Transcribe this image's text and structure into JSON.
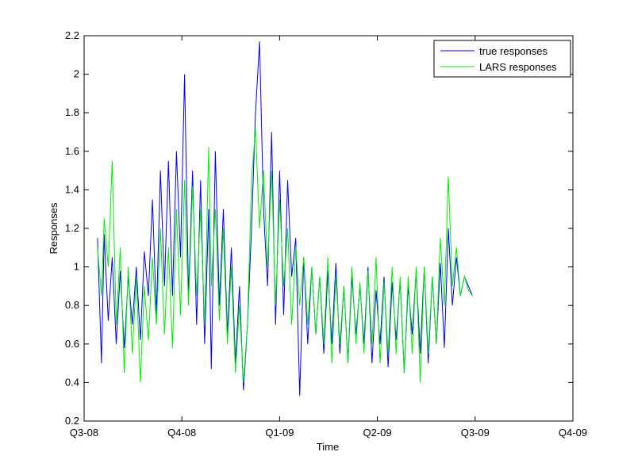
{
  "chart_data": {
    "type": "line",
    "xlabel": "Time",
    "ylabel": "Responses",
    "x_ticks": [
      "Q3-08",
      "Q4-08",
      "Q1-09",
      "Q2-09",
      "Q3-09",
      "Q4-09"
    ],
    "x_range": [
      0,
      365
    ],
    "ylim": [
      0.2,
      2.2
    ],
    "y_ticks": [
      "0.2",
      "0.4",
      "0.6",
      "0.8",
      "1",
      "1.2",
      "1.4",
      "1.6",
      "1.8",
      "2",
      "2.2"
    ],
    "grid": false,
    "legend": "top-right",
    "series": [
      {
        "name": "true responses",
        "color": "#0000ff",
        "x": [
          10,
          13,
          15,
          18,
          21,
          24,
          27,
          30,
          33,
          36,
          39,
          42,
          45,
          48,
          51,
          54,
          57,
          60,
          63,
          66,
          69,
          72,
          75,
          78,
          81,
          84,
          87,
          90,
          93,
          95,
          98,
          101,
          104,
          107,
          110,
          113,
          116,
          119,
          122,
          125,
          128,
          131,
          134,
          137,
          140,
          143,
          146,
          149,
          152,
          155,
          158,
          161,
          164,
          167,
          170,
          173,
          176,
          179,
          182,
          185,
          188,
          191,
          194,
          197,
          200,
          203,
          206,
          209,
          212,
          215,
          218,
          221,
          224,
          227,
          230,
          233,
          236,
          239,
          242,
          245,
          248,
          251,
          254,
          257,
          260,
          263,
          266,
          269,
          272,
          275,
          278,
          281,
          284,
          287,
          290
        ],
        "y": [
          1.15,
          0.5,
          1.17,
          0.72,
          1.05,
          0.6,
          0.98,
          0.58,
          0.95,
          0.7,
          1.0,
          0.62,
          1.08,
          0.85,
          1.35,
          0.75,
          1.5,
          0.9,
          1.55,
          0.85,
          1.6,
          1.05,
          2.0,
          0.85,
          1.5,
          0.7,
          1.45,
          0.6,
          1.3,
          0.47,
          1.6,
          0.8,
          1.3,
          0.65,
          1.1,
          0.5,
          0.9,
          0.36,
          0.7,
          1.2,
          1.8,
          2.17,
          1.3,
          0.9,
          1.7,
          0.7,
          1.5,
          0.75,
          1.45,
          0.95,
          1.15,
          0.33,
          1.05,
          0.6,
          1.0,
          0.65,
          0.95,
          0.55,
          0.98,
          0.6,
          1.02,
          0.55,
          0.9,
          0.5,
          0.95,
          0.65,
          0.9,
          0.6,
          1.0,
          0.5,
          0.88,
          0.6,
          0.95,
          0.48,
          0.92,
          0.62,
          0.93,
          0.45,
          0.9,
          0.65,
          0.98,
          0.55,
          1.0,
          0.5,
          0.95,
          0.6,
          1.02,
          0.58,
          1.2,
          0.8,
          1.05,
          0.85,
          0.95,
          0.9,
          0.85
        ]
      },
      {
        "name": "LARS responses",
        "color": "#00ee00",
        "x": [
          10,
          13,
          15,
          18,
          21,
          24,
          27,
          30,
          33,
          36,
          39,
          42,
          45,
          48,
          51,
          54,
          57,
          60,
          63,
          66,
          69,
          72,
          75,
          78,
          81,
          84,
          87,
          90,
          93,
          95,
          98,
          101,
          104,
          107,
          110,
          113,
          116,
          119,
          122,
          125,
          128,
          131,
          134,
          137,
          140,
          143,
          146,
          149,
          152,
          155,
          158,
          161,
          164,
          167,
          170,
          173,
          176,
          179,
          182,
          185,
          188,
          191,
          194,
          197,
          200,
          203,
          206,
          209,
          212,
          215,
          218,
          221,
          224,
          227,
          230,
          233,
          236,
          239,
          242,
          245,
          248,
          251,
          254,
          257,
          260,
          263,
          266,
          269,
          272,
          275,
          278,
          281,
          284,
          287,
          290
        ],
        "y": [
          1.1,
          0.85,
          1.25,
          1.0,
          1.55,
          0.7,
          1.1,
          0.45,
          1.0,
          0.55,
          0.95,
          0.4,
          0.9,
          0.62,
          1.05,
          0.7,
          1.2,
          0.65,
          1.1,
          0.58,
          1.3,
          0.75,
          1.45,
          0.8,
          1.42,
          0.85,
          1.3,
          0.7,
          1.62,
          0.9,
          1.3,
          0.72,
          1.2,
          0.6,
          1.0,
          0.45,
          0.8,
          0.4,
          0.7,
          1.45,
          1.72,
          1.2,
          1.5,
          1.0,
          1.5,
          0.8,
          1.35,
          0.9,
          1.2,
          0.7,
          1.1,
          0.8,
          1.05,
          0.7,
          1.0,
          0.65,
          0.95,
          0.6,
          1.05,
          0.5,
          0.95,
          0.6,
          0.9,
          0.5,
          1.0,
          0.6,
          0.92,
          0.55,
          0.98,
          0.6,
          1.05,
          0.5,
          0.92,
          0.55,
          1.0,
          0.55,
          0.95,
          0.45,
          0.95,
          0.55,
          1.0,
          0.4,
          1.0,
          0.55,
          0.95,
          0.6,
          1.15,
          0.8,
          1.47,
          0.9,
          1.1,
          0.85,
          0.95,
          0.88,
          0.85
        ]
      }
    ]
  }
}
